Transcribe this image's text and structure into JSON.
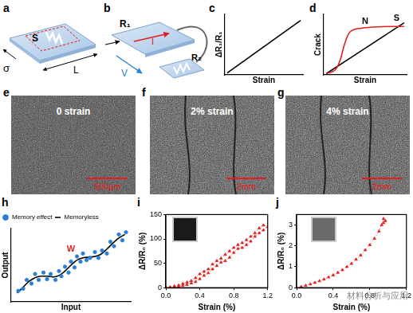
{
  "panel_labels": [
    "a",
    "b",
    "c",
    "d",
    "e",
    "f",
    "g",
    "h",
    "i",
    "j"
  ],
  "diagrams": {
    "a": {
      "region": "S",
      "length": "L",
      "stress": "σ"
    },
    "b": {
      "resistor1": "R₁",
      "current": "I",
      "voltage": "V",
      "resistor2": "R₂"
    }
  },
  "images": [
    {
      "caption": "0 strain",
      "scale_bar": "500μm",
      "cracks": false
    },
    {
      "caption": "2% strain",
      "scale_bar": "2mm",
      "cracks": true
    },
    {
      "caption": "4% strain",
      "scale_bar": "2mm",
      "cracks": true
    }
  ],
  "watermark": "材料分析与应用",
  "chart_data": [
    {
      "type": "line",
      "x_label": "Strain",
      "y_label": "ΔR₁/R₁",
      "xlim": [
        0,
        1
      ],
      "ylim": [
        0,
        1
      ],
      "tick_labels": false,
      "grid": false,
      "series": [
        {
          "color": "#000000",
          "marker": "none",
          "line_style": "solid",
          "x": [
            0.03,
            0.97
          ],
          "values": [
            0.03,
            0.9
          ]
        }
      ]
    },
    {
      "type": "line",
      "x_label": "Strain",
      "y_label": "Crack",
      "xlim": [
        0,
        1
      ],
      "ylim": [
        0,
        1
      ],
      "tick_labels": false,
      "grid": false,
      "series": [
        {
          "color": "#e02020",
          "marker": "none",
          "line_style": "solid",
          "x": [
            0.03,
            0.1,
            0.15,
            0.2,
            0.25,
            0.3,
            0.35,
            0.45,
            0.6,
            0.8,
            0.97
          ],
          "values": [
            0.02,
            0.05,
            0.1,
            0.25,
            0.5,
            0.68,
            0.74,
            0.77,
            0.79,
            0.8,
            0.8
          ]
        },
        {
          "color": "#000000",
          "marker": "none",
          "line_style": "solid",
          "x": [
            0.03,
            0.97
          ],
          "values": [
            0.02,
            0.86
          ]
        }
      ],
      "annotations": [
        {
          "text": "N",
          "x": 0.5,
          "y": 0.88,
          "color": "#000000"
        },
        {
          "text": "S",
          "x": 0.88,
          "y": 0.93,
          "color": "#000000"
        }
      ]
    },
    {
      "type": "line",
      "x_label": "Input",
      "y_label": "Output",
      "xlim": [
        0,
        1
      ],
      "ylim": [
        0,
        1
      ],
      "tick_labels": false,
      "grid": false,
      "legend": "upper left",
      "series": [
        {
          "name": "Memory effect",
          "type": "scatter",
          "color": "#2a7fd4",
          "marker": "circle",
          "x": [
            0.06,
            0.1,
            0.13,
            0.17,
            0.2,
            0.23,
            0.27,
            0.3,
            0.33,
            0.37,
            0.4,
            0.42,
            0.45,
            0.48,
            0.5,
            0.53,
            0.55,
            0.58,
            0.6,
            0.63,
            0.66,
            0.7,
            0.73,
            0.76,
            0.8,
            0.83,
            0.86,
            0.9,
            0.93,
            0.96
          ],
          "values": [
            0.15,
            0.18,
            0.3,
            0.25,
            0.38,
            0.3,
            0.4,
            0.31,
            0.38,
            0.3,
            0.42,
            0.35,
            0.48,
            0.4,
            0.55,
            0.47,
            0.62,
            0.55,
            0.66,
            0.57,
            0.6,
            0.68,
            0.6,
            0.7,
            0.66,
            0.82,
            0.76,
            0.92,
            0.84,
            0.95
          ]
        },
        {
          "name": "Memoryless",
          "type": "line",
          "color": "#000000",
          "marker": "none",
          "line_style": "solid",
          "x": [
            0.05,
            0.1,
            0.15,
            0.2,
            0.25,
            0.3,
            0.35,
            0.4,
            0.45,
            0.5,
            0.55,
            0.6,
            0.65,
            0.7,
            0.75,
            0.8,
            0.85,
            0.9,
            0.95
          ],
          "values": [
            0.12,
            0.2,
            0.28,
            0.33,
            0.35,
            0.35,
            0.34,
            0.36,
            0.42,
            0.5,
            0.57,
            0.6,
            0.61,
            0.62,
            0.65,
            0.72,
            0.8,
            0.87,
            0.92
          ]
        }
      ],
      "annotations": [
        {
          "text": "W",
          "x": 0.5,
          "y": 0.72,
          "color": "#e02020"
        }
      ]
    },
    {
      "type": "line",
      "x_label": "Strain (%)",
      "y_label": "ΔR/R₀ (%)",
      "xlim": [
        0,
        1.2
      ],
      "ylim": [
        0,
        150
      ],
      "xticks": [
        {
          "value": 0,
          "label": "0.0"
        },
        0.4,
        0.8,
        1.2
      ],
      "yticks": [
        0,
        50,
        100,
        150
      ],
      "grid": false,
      "series": [
        {
          "color": "#e02020",
          "marker": "triangle",
          "line_style": "dotted",
          "x": [
            0,
            0.05,
            0.1,
            0.15,
            0.2,
            0.25,
            0.3,
            0.35,
            0.4,
            0.45,
            0.5,
            0.55,
            0.6,
            0.65,
            0.7,
            0.75,
            0.8,
            0.85,
            0.9,
            0.95,
            1.0,
            1.05,
            1.1,
            1.15,
            1.2,
            1.15,
            1.1,
            1.05,
            1.0,
            0.95,
            0.9,
            0.85,
            0.8,
            0.75,
            0.7,
            0.65,
            0.6,
            0.55,
            0.5,
            0.45,
            0.4,
            0.35,
            0.3,
            0.25,
            0.2,
            0.15,
            0.1,
            0.05,
            0
          ],
          "values": [
            0,
            1,
            3,
            5,
            8,
            11,
            14,
            20,
            28,
            33,
            38,
            48,
            55,
            60,
            68,
            75,
            82,
            88,
            92,
            98,
            105,
            112,
            122,
            128,
            125,
            118,
            112,
            105,
            95,
            88,
            82,
            80,
            72,
            62,
            55,
            52,
            45,
            38,
            30,
            25,
            18,
            12,
            9,
            6,
            4,
            2,
            1,
            0,
            0
          ]
        }
      ]
    },
    {
      "type": "line",
      "x_label": "Strain (%)",
      "y_label": "ΔR/R₀ (%)",
      "xlim": [
        0,
        1.2
      ],
      "ylim": [
        0,
        3.5
      ],
      "xticks": [
        {
          "value": 0,
          "label": "0.0"
        },
        0.4,
        0.8,
        1.2
      ],
      "yticks": [
        0,
        1,
        2,
        3
      ],
      "grid": false,
      "series": [
        {
          "color": "#e02020",
          "marker": "triangle",
          "line_style": "dotted",
          "x": [
            0,
            0.05,
            0.1,
            0.15,
            0.2,
            0.25,
            0.3,
            0.35,
            0.4,
            0.45,
            0.5,
            0.55,
            0.6,
            0.65,
            0.7,
            0.75,
            0.8,
            0.85,
            0.9,
            0.93,
            0.95,
            0.97,
            0.95
          ],
          "values": [
            0,
            0.05,
            0.1,
            0.17,
            0.24,
            0.32,
            0.4,
            0.5,
            0.6,
            0.72,
            0.85,
            1.0,
            1.15,
            1.35,
            1.55,
            1.8,
            2.05,
            2.35,
            2.7,
            3.0,
            3.3,
            3.2,
            3.1
          ]
        }
      ]
    }
  ]
}
